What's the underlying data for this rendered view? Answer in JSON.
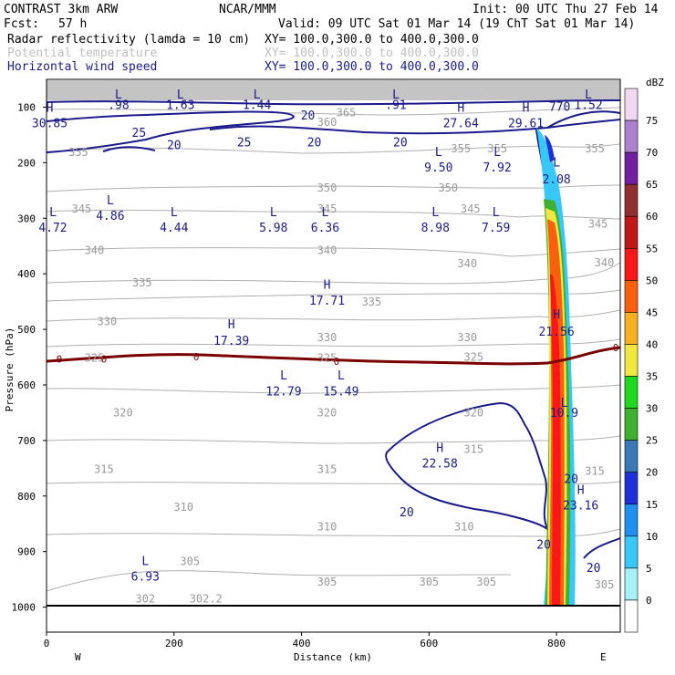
{
  "header": {
    "model": "CONTRAST  3km ARW",
    "org": "NCAR/MMM",
    "init": "Init: 00 UTC Thu 27 Feb 14",
    "fcst_label": "Fcst:",
    "fcst_value": "57 h",
    "valid": "Valid: 09 UTC Sat 01 Mar 14 (19 ChT Sat 01 Mar 14)"
  },
  "fields": [
    {
      "name": "Radar reflectivity (lamda = 10 cm)",
      "xy": "XY= 100.0,300.0 to 400.0,300.0",
      "color": "#000000"
    },
    {
      "name": "Potential temperature",
      "xy": "XY= 100.0,300.0 to 400.0,300.0",
      "color": "#c0c0c0"
    },
    {
      "name": "Horizontal wind speed",
      "xy": "XY= 100.0,300.0 to 400.0,300.0",
      "color": "#1a1a8c"
    }
  ],
  "chart_data": {
    "type": "cross-section",
    "xlabel": "Distance (km)",
    "ylabel": "Pressure (hPa)",
    "xlim": [
      0,
      900
    ],
    "ylim": [
      1045,
      50
    ],
    "x_ticks": [
      0,
      200,
      400,
      600,
      800
    ],
    "y_ticks": [
      100,
      200,
      300,
      400,
      500,
      600,
      700,
      800,
      900,
      1000
    ],
    "x_end_labels": {
      "left": "W",
      "right": "E"
    },
    "colorbar": {
      "unit": "dBZ",
      "levels": [
        0,
        5,
        10,
        15,
        20,
        25,
        30,
        35,
        40,
        45,
        50,
        55,
        60,
        65,
        70,
        75
      ],
      "colors": [
        "#ffffff",
        "#a8f0f8",
        "#38c8f8",
        "#2090f0",
        "#2030d8",
        "#3a78b8",
        "#40b030",
        "#20d820",
        "#f0e840",
        "#f8b020",
        "#f86010",
        "#f81818",
        "#c01818",
        "#903030",
        "#7020a0",
        "#b080d0",
        "#f0d8f0"
      ]
    },
    "wind_labels": [
      {
        "t": "H",
        "x": 5,
        "p": 102
      },
      {
        "t": "30.85",
        "x": 5,
        "p": 130
      },
      {
        "t": "L",
        "x": 113,
        "p": 78
      },
      {
        "t": ".98",
        "x": 113,
        "p": 97
      },
      {
        "t": "L",
        "x": 210,
        "p": 78
      },
      {
        "t": "1.63",
        "x": 210,
        "p": 97
      },
      {
        "t": "L",
        "x": 330,
        "p": 78
      },
      {
        "t": "1.44",
        "x": 330,
        "p": 97
      },
      {
        "t": "L",
        "x": 548,
        "p": 78
      },
      {
        "t": ".91",
        "x": 548,
        "p": 97
      },
      {
        "t": "H",
        "x": 650,
        "p": 102
      },
      {
        "t": "27.64",
        "x": 650,
        "p": 130
      },
      {
        "t": "H",
        "x": 752,
        "p": 102
      },
      {
        "t": "29.61",
        "x": 752,
        "p": 130
      },
      {
        "t": "L",
        "x": 850,
        "p": 78
      },
      {
        "t": "1.52",
        "x": 850,
        "p": 97
      },
      {
        "t": "L",
        "x": 615,
        "p": 181
      },
      {
        "t": "9.50",
        "x": 615,
        "p": 209
      },
      {
        "t": "L",
        "x": 707,
        "p": 181
      },
      {
        "t": "7.92",
        "x": 707,
        "p": 209
      },
      {
        "t": "L",
        "x": 800,
        "p": 200
      },
      {
        "t": "2.08",
        "x": 800,
        "p": 231
      },
      {
        "t": "L",
        "x": 10,
        "p": 290
      },
      {
        "t": "4.72",
        "x": 10,
        "p": 318
      },
      {
        "t": "L",
        "x": 100,
        "p": 268
      },
      {
        "t": "4.86",
        "x": 100,
        "p": 296
      },
      {
        "t": "L",
        "x": 200,
        "p": 290
      },
      {
        "t": "4.44",
        "x": 200,
        "p": 318
      },
      {
        "t": "L",
        "x": 356,
        "p": 290
      },
      {
        "t": "5.98",
        "x": 356,
        "p": 318
      },
      {
        "t": "L",
        "x": 437,
        "p": 290
      },
      {
        "t": "6.36",
        "x": 437,
        "p": 318
      },
      {
        "t": "L",
        "x": 610,
        "p": 290
      },
      {
        "t": "8.98",
        "x": 610,
        "p": 318
      },
      {
        "t": "L",
        "x": 705,
        "p": 290
      },
      {
        "t": "7.59",
        "x": 705,
        "p": 318
      },
      {
        "t": "H",
        "x": 440,
        "p": 420
      },
      {
        "t": "17.71",
        "x": 440,
        "p": 449
      },
      {
        "t": "H",
        "x": 290,
        "p": 492
      },
      {
        "t": "17.39",
        "x": 290,
        "p": 521
      },
      {
        "t": "H",
        "x": 800,
        "p": 474
      },
      {
        "t": "21.56",
        "x": 800,
        "p": 505
      },
      {
        "t": "L",
        "x": 372,
        "p": 584
      },
      {
        "t": "12.79",
        "x": 372,
        "p": 612
      },
      {
        "t": "L",
        "x": 462,
        "p": 584
      },
      {
        "t": "15.49",
        "x": 462,
        "p": 612
      },
      {
        "t": "L",
        "x": 812,
        "p": 633
      },
      {
        "t": "10.9",
        "x": 812,
        "p": 651
      },
      {
        "t": "H",
        "x": 617,
        "p": 714
      },
      {
        "t": "22.58",
        "x": 617,
        "p": 742
      },
      {
        "t": "H",
        "x": 838,
        "p": 790
      },
      {
        "t": "23.16",
        "x": 838,
        "p": 818
      },
      {
        "t": "L",
        "x": 155,
        "p": 918
      },
      {
        "t": "6.93",
        "x": 155,
        "p": 946
      },
      {
        "t": "20",
        "x": 410,
        "p": 116
      },
      {
        "t": "25",
        "x": 145,
        "p": 147
      },
      {
        "t": "20",
        "x": 200,
        "p": 169
      },
      {
        "t": "25",
        "x": 310,
        "p": 164
      },
      {
        "t": "20",
        "x": 420,
        "p": 164
      },
      {
        "t": "20",
        "x": 555,
        "p": 164
      },
      {
        "t": "20",
        "x": 565,
        "p": 830
      },
      {
        "t": "20",
        "x": 823,
        "p": 770
      },
      {
        "t": "20",
        "x": 780,
        "p": 888
      },
      {
        "t": "20",
        "x": 858,
        "p": 930
      },
      {
        "t": "770",
        "x": 805,
        "p": 100
      }
    ],
    "theta_labels": [
      {
        "t": "360",
        "x": 440,
        "p": 127
      },
      {
        "t": "365",
        "x": 470,
        "p": 110
      },
      {
        "t": "355",
        "x": 50,
        "p": 181
      },
      {
        "t": "355",
        "x": 650,
        "p": 175
      },
      {
        "t": "355",
        "x": 707,
        "p": 175
      },
      {
        "t": "355",
        "x": 860,
        "p": 175
      },
      {
        "t": "350",
        "x": 440,
        "p": 245
      },
      {
        "t": "350",
        "x": 630,
        "p": 245
      },
      {
        "t": "345",
        "x": 55,
        "p": 283
      },
      {
        "t": "345",
        "x": 440,
        "p": 283
      },
      {
        "t": "345",
        "x": 665,
        "p": 283
      },
      {
        "t": "345",
        "x": 865,
        "p": 310
      },
      {
        "t": "340",
        "x": 75,
        "p": 358
      },
      {
        "t": "340",
        "x": 440,
        "p": 358
      },
      {
        "t": "340",
        "x": 660,
        "p": 382
      },
      {
        "t": "340",
        "x": 875,
        "p": 380
      },
      {
        "t": "335",
        "x": 150,
        "p": 416
      },
      {
        "t": "335",
        "x": 510,
        "p": 451
      },
      {
        "t": "330",
        "x": 95,
        "p": 486
      },
      {
        "t": "330",
        "x": 440,
        "p": 515
      },
      {
        "t": "330",
        "x": 660,
        "p": 515
      },
      {
        "t": "325",
        "x": 75,
        "p": 552
      },
      {
        "t": "325",
        "x": 440,
        "p": 552
      },
      {
        "t": "325",
        "x": 670,
        "p": 550
      },
      {
        "t": "320",
        "x": 120,
        "p": 650
      },
      {
        "t": "320",
        "x": 440,
        "p": 650
      },
      {
        "t": "320",
        "x": 670,
        "p": 650
      },
      {
        "t": "315",
        "x": 90,
        "p": 752
      },
      {
        "t": "315",
        "x": 440,
        "p": 752
      },
      {
        "t": "315",
        "x": 670,
        "p": 716
      },
      {
        "t": "315",
        "x": 860,
        "p": 755
      },
      {
        "t": "310",
        "x": 215,
        "p": 820
      },
      {
        "t": "310",
        "x": 440,
        "p": 855
      },
      {
        "t": "310",
        "x": 655,
        "p": 855
      },
      {
        "t": "305",
        "x": 225,
        "p": 918
      },
      {
        "t": "305",
        "x": 440,
        "p": 955
      },
      {
        "t": "305",
        "x": 600,
        "p": 955
      },
      {
        "t": "305",
        "x": 690,
        "p": 955
      },
      {
        "t": "305",
        "x": 875,
        "p": 960
      },
      {
        "t": "302",
        "x": 155,
        "p": 985
      },
      {
        "t": "302.2",
        "x": 250,
        "p": 985
      }
    ],
    "zero_isotherm_labels": [
      {
        "t": "0",
        "x": 20,
        "p": 553
      },
      {
        "t": "0",
        "x": 90,
        "p": 553
      },
      {
        "t": "0",
        "x": 235,
        "p": 549
      },
      {
        "t": "0",
        "x": 455,
        "p": 557
      },
      {
        "t": "0",
        "x": 893,
        "p": 533
      }
    ]
  }
}
